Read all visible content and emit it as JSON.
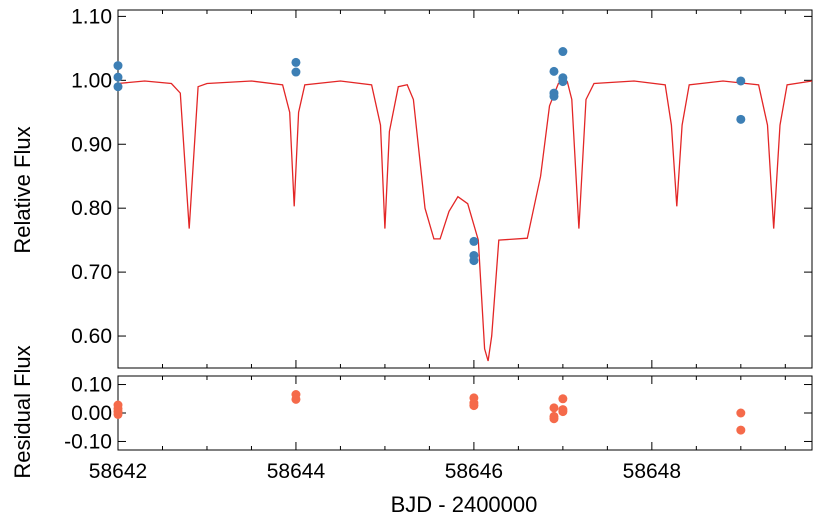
{
  "chart_data": [
    {
      "type": "scatter",
      "panel": "main",
      "ylabel": "Relative Flux",
      "ylim": [
        0.55,
        1.11
      ],
      "xlim": [
        58642,
        58649.8
      ],
      "yticks": [
        "1.10",
        "1.00",
        "0.90",
        "0.80",
        "0.70",
        "0.60"
      ],
      "grid": false,
      "colors": {
        "points": "#3d7fb5",
        "model": "#e32626"
      },
      "series": [
        {
          "kind": "points",
          "points": [
            [
              58642.0,
              1.023
            ],
            [
              58642.0,
              1.005
            ],
            [
              58642.0,
              0.99
            ],
            [
              58644.0,
              1.028
            ],
            [
              58644.0,
              1.013
            ],
            [
              58646.0,
              0.748
            ],
            [
              58646.0,
              0.726
            ],
            [
              58646.0,
              0.718
            ],
            [
              58646.9,
              1.014
            ],
            [
              58646.9,
              0.98
            ],
            [
              58646.9,
              0.975
            ],
            [
              58647.0,
              1.045
            ],
            [
              58647.0,
              1.004
            ],
            [
              58647.0,
              0.998
            ],
            [
              58649.0,
              0.999
            ],
            [
              58649.0,
              0.939
            ]
          ]
        },
        {
          "kind": "model-line",
          "points": [
            [
              58642.0,
              0.995
            ],
            [
              58642.3,
              0.999
            ],
            [
              58642.6,
              0.995
            ],
            [
              58642.7,
              0.98
            ],
            [
              58642.8,
              0.768
            ],
            [
              58642.9,
              0.99
            ],
            [
              58643.0,
              0.995
            ],
            [
              58643.5,
              0.999
            ],
            [
              58643.85,
              0.993
            ],
            [
              58643.93,
              0.95
            ],
            [
              58643.98,
              0.803
            ],
            [
              58644.03,
              0.95
            ],
            [
              58644.1,
              0.993
            ],
            [
              58644.5,
              0.999
            ],
            [
              58644.85,
              0.993
            ],
            [
              58644.95,
              0.93
            ],
            [
              58645.0,
              0.768
            ],
            [
              58645.05,
              0.92
            ],
            [
              58645.15,
              0.99
            ],
            [
              58645.25,
              0.993
            ],
            [
              58645.32,
              0.97
            ],
            [
              58645.45,
              0.8
            ],
            [
              58645.55,
              0.752
            ],
            [
              58645.62,
              0.752
            ],
            [
              58645.72,
              0.795
            ],
            [
              58645.82,
              0.818
            ],
            [
              58645.93,
              0.807
            ],
            [
              58646.05,
              0.75
            ],
            [
              58646.12,
              0.58
            ],
            [
              58646.16,
              0.561
            ],
            [
              58646.2,
              0.6
            ],
            [
              58646.28,
              0.75
            ],
            [
              58646.6,
              0.753
            ],
            [
              58646.75,
              0.85
            ],
            [
              58646.85,
              0.96
            ],
            [
              58646.95,
              0.995
            ],
            [
              58647.05,
              0.998
            ],
            [
              58647.1,
              0.97
            ],
            [
              58647.18,
              0.768
            ],
            [
              58647.26,
              0.97
            ],
            [
              58647.35,
              0.995
            ],
            [
              58647.8,
              0.999
            ],
            [
              58648.15,
              0.993
            ],
            [
              58648.22,
              0.93
            ],
            [
              58648.28,
              0.803
            ],
            [
              58648.34,
              0.93
            ],
            [
              58648.42,
              0.993
            ],
            [
              58648.8,
              0.999
            ],
            [
              58649.2,
              0.993
            ],
            [
              58649.3,
              0.93
            ],
            [
              58649.37,
              0.768
            ],
            [
              58649.44,
              0.93
            ],
            [
              58649.52,
              0.993
            ],
            [
              58649.8,
              0.999
            ]
          ]
        }
      ]
    },
    {
      "type": "scatter",
      "panel": "residual",
      "ylabel": "Residual Flux",
      "xlabel": "BJD - 2400000",
      "ylim": [
        -0.13,
        0.13
      ],
      "xlim": [
        58642,
        58649.8
      ],
      "yticks": [
        "0.10",
        "0.00",
        "-0.10"
      ],
      "xticks": [
        "58642",
        "58644",
        "58646",
        "58648"
      ],
      "grid": false,
      "colors": {
        "points": "#f56a4a"
      },
      "series": [
        {
          "kind": "points",
          "points": [
            [
              58642.0,
              0.028
            ],
            [
              58642.0,
              0.016
            ],
            [
              58642.0,
              0.005
            ],
            [
              58642.0,
              -0.005
            ],
            [
              58644.0,
              0.065
            ],
            [
              58644.0,
              0.048
            ],
            [
              58646.0,
              0.053
            ],
            [
              58646.0,
              0.035
            ],
            [
              58646.0,
              0.026
            ],
            [
              58646.9,
              0.018
            ],
            [
              58646.9,
              -0.012
            ],
            [
              58646.9,
              -0.02
            ],
            [
              58647.0,
              0.05
            ],
            [
              58647.0,
              0.012
            ],
            [
              58647.0,
              0.005
            ],
            [
              58649.0,
              0.0
            ],
            [
              58649.0,
              -0.06
            ]
          ]
        }
      ]
    }
  ]
}
